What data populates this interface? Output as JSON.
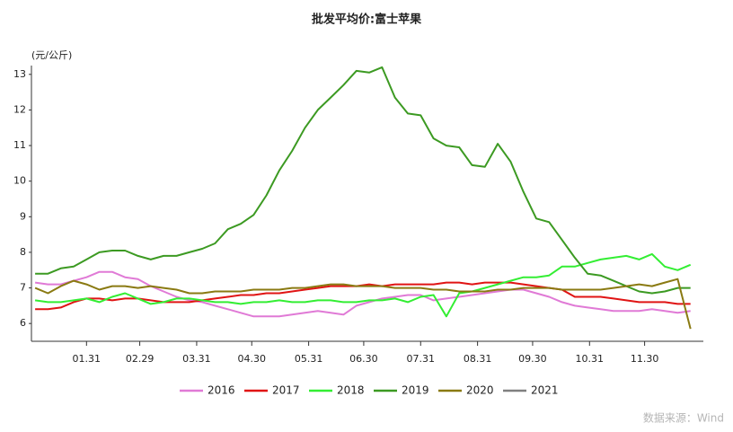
{
  "chart_data": {
    "type": "line",
    "title": "批发平均价:富士苹果",
    "y_axis_label": "(元/公斤)",
    "source": "数据来源：Wind",
    "x": [
      3,
      10,
      17,
      24,
      31,
      38,
      45,
      52,
      59,
      66,
      73,
      80,
      87,
      94,
      101,
      108,
      115,
      122,
      129,
      136,
      143,
      150,
      157,
      164,
      171,
      178,
      185,
      192,
      199,
      206,
      213,
      220,
      227,
      234,
      241,
      248,
      255,
      262,
      269,
      276,
      283,
      290,
      297,
      304,
      311,
      318,
      325,
      332,
      339,
      346,
      353,
      360
    ],
    "xlim": [
      1,
      367
    ],
    "xticks": [
      {
        "value": 31,
        "label": "01.31"
      },
      {
        "value": 60,
        "label": "02.29"
      },
      {
        "value": 91,
        "label": "03.31"
      },
      {
        "value": 121,
        "label": "04.30"
      },
      {
        "value": 152,
        "label": "05.31"
      },
      {
        "value": 182,
        "label": "06.30"
      },
      {
        "value": 213,
        "label": "07.31"
      },
      {
        "value": 244,
        "label": "08.31"
      },
      {
        "value": 274,
        "label": "09.30"
      },
      {
        "value": 305,
        "label": "10.31"
      },
      {
        "value": 335,
        "label": "11.30"
      }
    ],
    "ylim": [
      5.5,
      13.5
    ],
    "yticks": [
      6,
      7,
      8,
      9,
      10,
      11,
      12,
      13
    ],
    "grid": false,
    "legend": "bottom",
    "series": [
      {
        "name": "2016",
        "color": "#e07ad6",
        "values": [
          7.15,
          7.1,
          7.1,
          7.2,
          7.3,
          7.45,
          7.45,
          7.3,
          7.25,
          7.05,
          6.9,
          6.75,
          6.65,
          6.6,
          6.5,
          6.4,
          6.3,
          6.2,
          6.2,
          6.2,
          6.25,
          6.3,
          6.35,
          6.3,
          6.25,
          6.5,
          6.6,
          6.7,
          6.75,
          6.8,
          6.8,
          6.65,
          6.7,
          6.75,
          6.8,
          6.85,
          6.9,
          6.95,
          6.95,
          6.85,
          6.75,
          6.6,
          6.5,
          6.45,
          6.4,
          6.35,
          6.35,
          6.35,
          6.4,
          6.35,
          6.3,
          6.35
        ]
      },
      {
        "name": "2017",
        "color": "#e01414",
        "values": [
          6.4,
          6.4,
          6.45,
          6.6,
          6.7,
          6.7,
          6.65,
          6.7,
          6.7,
          6.65,
          6.6,
          6.6,
          6.6,
          6.65,
          6.7,
          6.75,
          6.8,
          6.8,
          6.85,
          6.85,
          6.9,
          6.95,
          7.0,
          7.05,
          7.05,
          7.05,
          7.1,
          7.05,
          7.1,
          7.1,
          7.1,
          7.1,
          7.15,
          7.15,
          7.1,
          7.15,
          7.15,
          7.15,
          7.1,
          7.05,
          7.0,
          6.95,
          6.75,
          6.75,
          6.75,
          6.7,
          6.65,
          6.6,
          6.6,
          6.6,
          6.55,
          6.55
        ]
      },
      {
        "name": "2018",
        "color": "#33ee33",
        "values": [
          6.65,
          6.6,
          6.6,
          6.65,
          6.7,
          6.6,
          6.75,
          6.85,
          6.7,
          6.55,
          6.6,
          6.7,
          6.7,
          6.65,
          6.6,
          6.6,
          6.55,
          6.6,
          6.6,
          6.65,
          6.6,
          6.6,
          6.65,
          6.65,
          6.6,
          6.6,
          6.65,
          6.65,
          6.7,
          6.6,
          6.75,
          6.8,
          6.2,
          6.85,
          6.9,
          7.0,
          7.1,
          7.2,
          7.3,
          7.3,
          7.35,
          7.6,
          7.6,
          7.7,
          7.8,
          7.85,
          7.9,
          7.8,
          7.95,
          7.6,
          7.5,
          7.65
        ]
      },
      {
        "name": "2019",
        "color": "#3c9a22",
        "values": [
          7.4,
          7.4,
          7.55,
          7.6,
          7.8,
          8.0,
          8.05,
          8.05,
          7.9,
          7.8,
          7.9,
          7.9,
          8.0,
          8.1,
          8.25,
          8.65,
          8.8,
          9.05,
          9.6,
          10.3,
          10.85,
          11.5,
          12.0,
          12.35,
          12.7,
          13.1,
          13.05,
          13.2,
          12.35,
          11.9,
          11.85,
          11.2,
          11.0,
          10.95,
          10.45,
          10.4,
          11.05,
          10.55,
          9.7,
          8.95,
          8.85,
          8.35,
          7.85,
          7.4,
          7.35,
          7.2,
          7.05,
          6.9,
          6.85,
          6.9,
          7.0,
          7.0
        ]
      },
      {
        "name": "2020",
        "color": "#8a7a12",
        "values": [
          7.0,
          6.85,
          7.05,
          7.2,
          7.1,
          6.95,
          7.05,
          7.05,
          7.0,
          7.05,
          7.0,
          6.95,
          6.85,
          6.85,
          6.9,
          6.9,
          6.9,
          6.95,
          6.95,
          6.95,
          7.0,
          7.0,
          7.05,
          7.1,
          7.1,
          7.05,
          7.05,
          7.05,
          7.0,
          7.0,
          7.0,
          6.95,
          6.95,
          6.9,
          6.9,
          6.9,
          6.95,
          6.95,
          7.0,
          7.0,
          7.0,
          6.95,
          6.95,
          6.95,
          6.95,
          7.0,
          7.05,
          7.1,
          7.05,
          7.15,
          7.25,
          5.85
        ]
      },
      {
        "name": "2021",
        "color": "#808080",
        "values": [
          null,
          null,
          null,
          null,
          null,
          null,
          null,
          null,
          null,
          null,
          null,
          null,
          null,
          null,
          null,
          null,
          null,
          null,
          null,
          null,
          null,
          null,
          null,
          null,
          null,
          null,
          null,
          null,
          null,
          null,
          null,
          null,
          null,
          null,
          null,
          null,
          null,
          null,
          null,
          null,
          null,
          null,
          null,
          null,
          null,
          null,
          null,
          null,
          null,
          null,
          null,
          null
        ]
      }
    ]
  }
}
